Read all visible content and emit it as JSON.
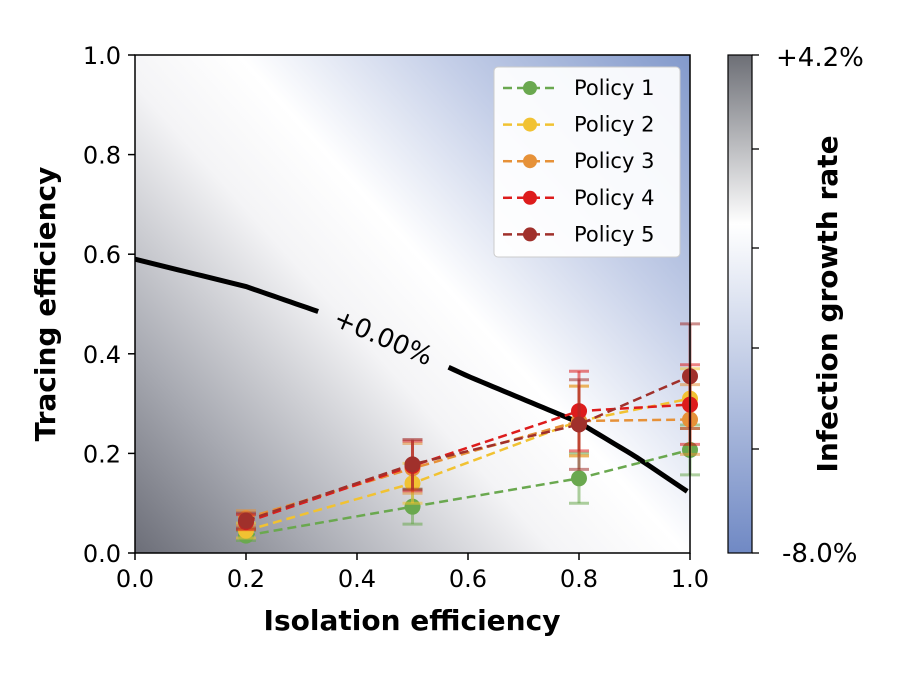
{
  "chart_data": {
    "type": "line",
    "xlabel": "Isolation efficiency",
    "ylabel": "Tracing efficiency",
    "xlim": [
      0.0,
      1.0
    ],
    "ylim": [
      0.0,
      1.0
    ],
    "x_ticks": [
      "0.0",
      "0.2",
      "0.4",
      "0.6",
      "0.8",
      "1.0"
    ],
    "y_ticks": [
      "0.0",
      "0.2",
      "0.4",
      "0.6",
      "0.8",
      "1.0"
    ],
    "grid": false,
    "legend_position": "top-right",
    "series": [
      {
        "name": "Policy 1",
        "color": "#6aa84f",
        "x": [
          0.2,
          0.5,
          0.8,
          1.0
        ],
        "y": [
          0.035,
          0.093,
          0.15,
          0.207
        ],
        "err": [
          0.01,
          0.035,
          0.05,
          0.05
        ]
      },
      {
        "name": "Policy 2",
        "color": "#f1c232",
        "x": [
          0.2,
          0.5,
          0.8,
          1.0
        ],
        "y": [
          0.045,
          0.14,
          0.265,
          0.31
        ],
        "err": [
          0.015,
          0.04,
          0.07,
          0.06
        ]
      },
      {
        "name": "Policy 3",
        "color": "#e69138",
        "x": [
          0.2,
          0.5,
          0.8,
          1.0
        ],
        "y": [
          0.07,
          0.17,
          0.265,
          0.268
        ],
        "err": [
          0.015,
          0.05,
          0.07,
          0.07
        ]
      },
      {
        "name": "Policy 4",
        "color": "#dd1c1c",
        "x": [
          0.2,
          0.5,
          0.8,
          1.0
        ],
        "y": [
          0.062,
          0.175,
          0.285,
          0.298
        ],
        "err": [
          0.015,
          0.05,
          0.08,
          0.08
        ]
      },
      {
        "name": "Policy 5",
        "color": "#a0302b",
        "x": [
          0.2,
          0.5,
          0.8,
          1.0
        ],
        "y": [
          0.065,
          0.178,
          0.258,
          0.355
        ],
        "err": [
          0.015,
          0.05,
          0.09,
          0.105
        ]
      }
    ],
    "contour": {
      "label": "+0.00%",
      "x": [
        0.0,
        0.2,
        0.4,
        0.6,
        0.8,
        0.9,
        1.0
      ],
      "y": [
        0.59,
        0.535,
        0.458,
        0.355,
        0.262,
        0.195,
        0.12
      ]
    },
    "colorbar": {
      "label": "Infection growth rate",
      "max_label": "+4.2%",
      "min_label": "-8.0%",
      "max_color": "#6d6f76",
      "mid_color": "#ffffff",
      "min_color": "#7089c4"
    }
  }
}
